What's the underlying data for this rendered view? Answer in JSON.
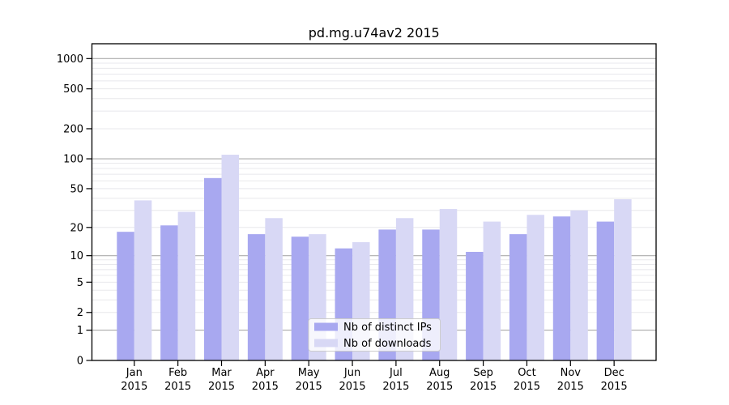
{
  "chart_data": {
    "type": "bar",
    "title": "pd.mg.u74av2 2015",
    "categories": [
      "Jan 2015",
      "Feb 2015",
      "Mar 2015",
      "Apr 2015",
      "May 2015",
      "Jun 2015",
      "Jul 2015",
      "Aug 2015",
      "Sep 2015",
      "Oct 2015",
      "Nov 2015",
      "Dec 2015"
    ],
    "x_ticks": [
      {
        "line1": "Jan",
        "line2": "2015"
      },
      {
        "line1": "Feb",
        "line2": "2015"
      },
      {
        "line1": "Mar",
        "line2": "2015"
      },
      {
        "line1": "Apr",
        "line2": "2015"
      },
      {
        "line1": "May",
        "line2": "2015"
      },
      {
        "line1": "Jun",
        "line2": "2015"
      },
      {
        "line1": "Jul",
        "line2": "2015"
      },
      {
        "line1": "Aug",
        "line2": "2015"
      },
      {
        "line1": "Sep",
        "line2": "2015"
      },
      {
        "line1": "Oct",
        "line2": "2015"
      },
      {
        "line1": "Nov",
        "line2": "2015"
      },
      {
        "line1": "Dec",
        "line2": "2015"
      }
    ],
    "series": [
      {
        "name": "Nb of distinct IPs",
        "color": "#a8a8f0",
        "values": [
          18,
          21,
          64,
          17,
          16,
          12,
          19,
          19,
          11,
          17,
          26,
          23
        ]
      },
      {
        "name": "Nb of downloads",
        "color": "#d8d8f5",
        "values": [
          38,
          29,
          110,
          25,
          17,
          14,
          25,
          31,
          23,
          27,
          30,
          39
        ]
      }
    ],
    "y_axis": {
      "scale": "log10(value+1)",
      "tick_values": [
        0,
        1,
        2,
        5,
        10,
        20,
        50,
        100,
        200,
        500,
        1000
      ],
      "range": [
        0,
        1400
      ]
    },
    "legend": {
      "location": "lower center",
      "items": [
        "Nb of distinct IPs",
        "Nb of downloads"
      ]
    },
    "grid": {
      "enabled": true,
      "major_color": "#ababab",
      "minor_color": "#e8e8ec"
    },
    "axis_color": "#000000"
  }
}
